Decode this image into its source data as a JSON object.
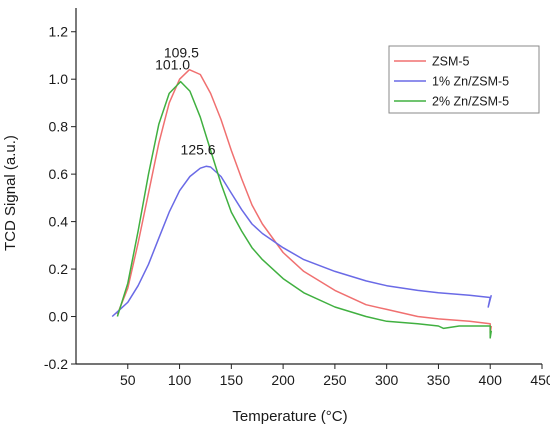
{
  "chart_data": {
    "type": "line",
    "title": "",
    "xlabel": "Temperature (°C)",
    "ylabel": "TCD Signal (a.u.)",
    "xlim": [
      0,
      450
    ],
    "ylim": [
      -0.2,
      1.3
    ],
    "xticks": [
      50,
      100,
      150,
      200,
      250,
      300,
      350,
      400,
      450
    ],
    "yticks": [
      -0.2,
      0.0,
      0.2,
      0.4,
      0.6,
      0.8,
      1.0,
      1.2
    ],
    "x_tick_labels": [
      "50",
      "100",
      "150",
      "200",
      "250",
      "300",
      "350",
      "400",
      "450"
    ],
    "y_tick_labels": [
      "-0.2",
      "0.0",
      "0.2",
      "0.4",
      "0.6",
      "0.8",
      "1.0",
      "1.2"
    ],
    "grid": false,
    "legend_position": "top-right",
    "series": [
      {
        "name": "ZSM-5",
        "color": "#f07070",
        "x": [
          40,
          50,
          60,
          70,
          80,
          90,
          100,
          109.5,
          120,
          130,
          140,
          150,
          160,
          170,
          180,
          200,
          220,
          250,
          280,
          300,
          330,
          350,
          380,
          400,
          400,
          401
        ],
        "y": [
          0.01,
          0.12,
          0.31,
          0.52,
          0.73,
          0.9,
          1.0,
          1.04,
          1.02,
          0.94,
          0.83,
          0.7,
          0.58,
          0.47,
          0.39,
          0.27,
          0.19,
          0.11,
          0.05,
          0.03,
          0.0,
          -0.01,
          -0.02,
          -0.03,
          -0.07,
          -0.04
        ]
      },
      {
        "name": "1% Zn/ZSM-5",
        "color": "#6a6ae6",
        "x": [
          35,
          40,
          50,
          60,
          70,
          80,
          90,
          100,
          110,
          120,
          125.6,
          130,
          140,
          150,
          160,
          170,
          180,
          200,
          220,
          250,
          280,
          300,
          330,
          350,
          380,
          400,
          398,
          401
        ],
        "y": [
          0.0,
          0.02,
          0.06,
          0.13,
          0.22,
          0.33,
          0.44,
          0.53,
          0.59,
          0.625,
          0.633,
          0.63,
          0.59,
          0.52,
          0.45,
          0.39,
          0.35,
          0.29,
          0.24,
          0.19,
          0.15,
          0.13,
          0.11,
          0.1,
          0.09,
          0.08,
          0.04,
          0.09
        ]
      },
      {
        "name": "2% Zn/ZSM-5",
        "color": "#40b040",
        "x": [
          40,
          50,
          60,
          70,
          80,
          90,
          101,
          110,
          120,
          130,
          140,
          150,
          160,
          170,
          180,
          200,
          220,
          250,
          280,
          300,
          330,
          350,
          355,
          370,
          400,
          400,
          401
        ],
        "y": [
          0.0,
          0.14,
          0.36,
          0.6,
          0.81,
          0.94,
          0.99,
          0.95,
          0.84,
          0.7,
          0.56,
          0.44,
          0.36,
          0.29,
          0.24,
          0.16,
          0.1,
          0.04,
          0.0,
          -0.02,
          -0.03,
          -0.04,
          -0.05,
          -0.04,
          -0.04,
          -0.09,
          -0.06
        ]
      }
    ],
    "annotations": [
      {
        "text": "109.5",
        "x": 109.5,
        "y": 1.04,
        "color": "#e03030"
      },
      {
        "text": "101.0",
        "x": 101.0,
        "y": 0.99,
        "color": "#208a20"
      },
      {
        "text": "125.6",
        "x": 125.6,
        "y": 0.633,
        "color": "#2a6fd0"
      }
    ]
  }
}
